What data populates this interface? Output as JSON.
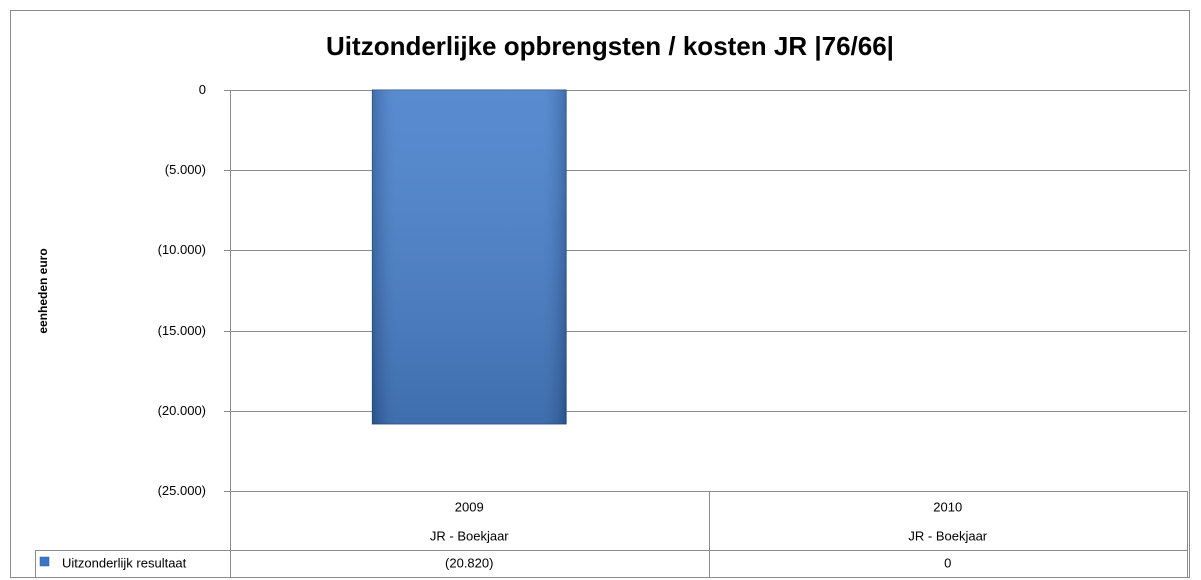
{
  "chart_data": {
    "type": "bar",
    "title": "Uitzonderlijke opbrengsten / kosten JR |76/66|",
    "ylabel": "eenheden euro",
    "categories": [
      "2009",
      "2010"
    ],
    "category_groups": [
      "JR - Boekjaar",
      "JR - Boekjaar"
    ],
    "series": [
      {
        "name": "Uitzonderlijk resultaat",
        "color": "#3a76c8",
        "values": [
          -20820,
          0
        ],
        "value_labels": [
          "(20.820)",
          "0"
        ]
      }
    ],
    "ylim": [
      -25000,
      0
    ],
    "yticks": [
      0,
      {
        "value": -5000,
        "label": "(5.000)"
      },
      {
        "value": -10000,
        "label": "(10.000)"
      },
      {
        "value": -15000,
        "label": "(15.000)"
      },
      {
        "value": -20000,
        "label": "(20.000)"
      },
      {
        "value": -25000,
        "label": "(25.000)"
      }
    ],
    "grid": true
  }
}
